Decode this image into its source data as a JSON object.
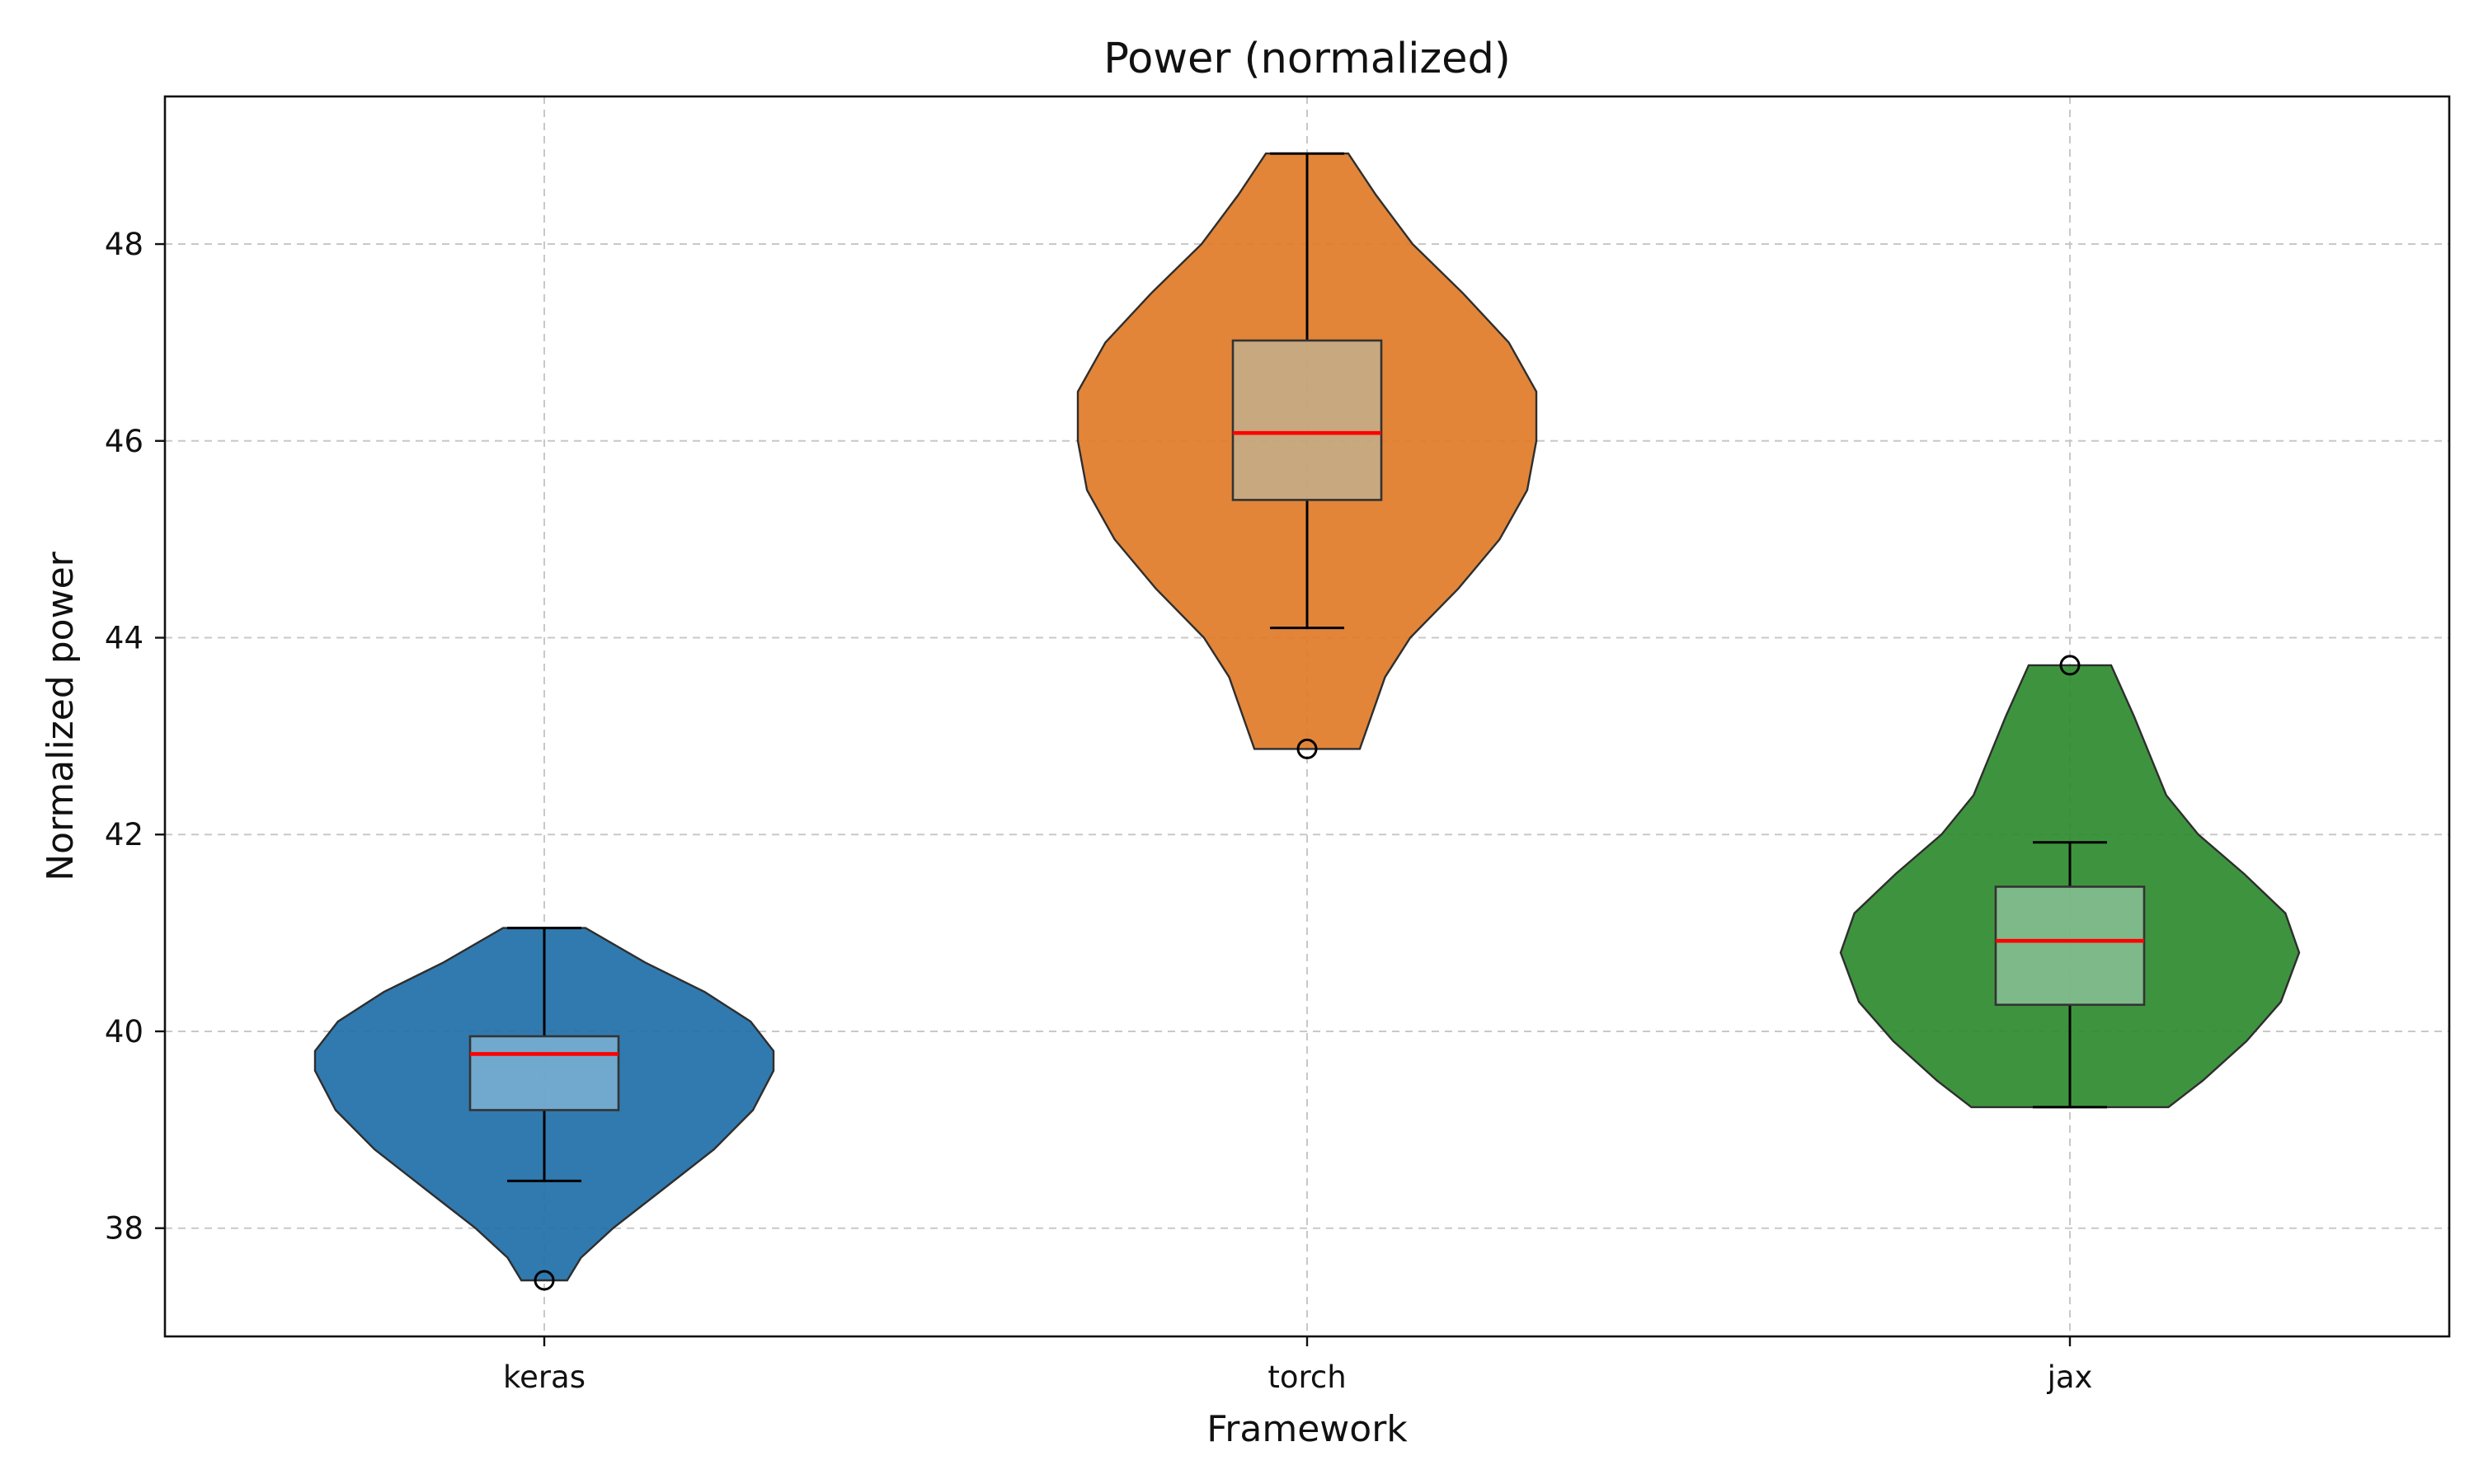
{
  "chart_data": {
    "type": "violin",
    "title": "Power (normalized)",
    "xlabel": "Framework",
    "ylabel": "Normalized power",
    "ylim": [
      36.9,
      49.5
    ],
    "yticks": [
      38,
      40,
      42,
      44,
      46,
      48
    ],
    "categories": [
      "keras",
      "torch",
      "jax"
    ],
    "grid": true,
    "series": [
      {
        "category": "keras",
        "color": "#1f6fa8",
        "box_color": "#a6cfe8",
        "min": 37.47,
        "max": 41.05,
        "q1": 39.2,
        "median": 39.77,
        "q3": 39.95,
        "whisker_low": 38.48,
        "whisker_high": 41.05,
        "outliers": [
          37.47
        ],
        "density": [
          [
            37.47,
            0.1
          ],
          [
            37.7,
            0.16
          ],
          [
            38.0,
            0.3
          ],
          [
            38.4,
            0.52
          ],
          [
            38.8,
            0.74
          ],
          [
            39.2,
            0.91
          ],
          [
            39.6,
            1.0
          ],
          [
            39.8,
            1.0
          ],
          [
            40.1,
            0.9
          ],
          [
            40.4,
            0.7
          ],
          [
            40.7,
            0.44
          ],
          [
            41.05,
            0.18
          ]
        ]
      },
      {
        "category": "torch",
        "color": "#e07b28",
        "box_color": "#b3c4b8",
        "min": 42.87,
        "max": 48.92,
        "q1": 45.4,
        "median": 46.08,
        "q3": 47.02,
        "whisker_low": 44.1,
        "whisker_high": 48.92,
        "outliers": [
          42.87
        ],
        "density": [
          [
            42.87,
            0.23
          ],
          [
            43.2,
            0.28
          ],
          [
            43.6,
            0.34
          ],
          [
            44.0,
            0.45
          ],
          [
            44.5,
            0.66
          ],
          [
            45.0,
            0.84
          ],
          [
            45.5,
            0.96
          ],
          [
            46.0,
            1.0
          ],
          [
            46.5,
            1.0
          ],
          [
            47.0,
            0.88
          ],
          [
            47.5,
            0.68
          ],
          [
            48.0,
            0.46
          ],
          [
            48.5,
            0.3
          ],
          [
            48.92,
            0.18
          ]
        ]
      },
      {
        "category": "jax",
        "color": "#2e8b2e",
        "box_color": "#b3d8c6",
        "min": 39.23,
        "max": 43.72,
        "q1": 40.27,
        "median": 40.92,
        "q3": 41.47,
        "whisker_low": 39.23,
        "whisker_high": 41.92,
        "outliers": [
          43.72
        ],
        "density": [
          [
            39.23,
            0.43
          ],
          [
            39.5,
            0.58
          ],
          [
            39.9,
            0.77
          ],
          [
            40.3,
            0.92
          ],
          [
            40.8,
            1.0
          ],
          [
            41.2,
            0.94
          ],
          [
            41.6,
            0.76
          ],
          [
            42.0,
            0.56
          ],
          [
            42.4,
            0.42
          ],
          [
            42.8,
            0.35
          ],
          [
            43.2,
            0.28
          ],
          [
            43.72,
            0.18
          ]
        ]
      }
    ]
  }
}
